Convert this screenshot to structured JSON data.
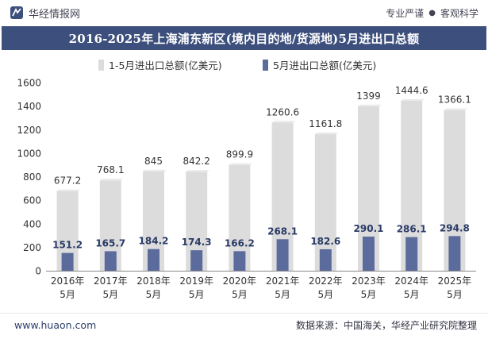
{
  "header": {
    "site_name": "华经情报网",
    "tag_pro": "专业严谨",
    "tag_obj": "客观科学",
    "title": "2016-2025年上海浦东新区(境内目的地/货源地)5月进出口总额"
  },
  "colors": {
    "title_bg": "#3d4f7c",
    "series_total": "#dcdcdc",
    "series_may": "#5b6c9c"
  },
  "chart_data": {
    "type": "bar",
    "title": "2016-2025年上海浦东新区(境内目的地/货源地)5月进出口总额",
    "categories": [
      [
        "2016年",
        "5月"
      ],
      [
        "2017年",
        "5月"
      ],
      [
        "2018年",
        "5月"
      ],
      [
        "2019年",
        "5月"
      ],
      [
        "2020年",
        "5月"
      ],
      [
        "2021年",
        "5月"
      ],
      [
        "2022年",
        "5月"
      ],
      [
        "2023年",
        "5月"
      ],
      [
        "2024年",
        "5月"
      ],
      [
        "2025年",
        "5月"
      ]
    ],
    "series": [
      {
        "name": "1-5月进出口总额(亿美元)",
        "values": [
          677.2,
          768.1,
          845,
          842.2,
          899.9,
          1260.6,
          1161.8,
          1399,
          1444.6,
          1366.1
        ]
      },
      {
        "name": "5月进出口总额(亿美元)",
        "values": [
          151.2,
          165.7,
          184.2,
          174.3,
          166.2,
          268.1,
          182.6,
          290.1,
          286.1,
          294.8
        ]
      }
    ],
    "ylim": [
      0,
      1600
    ],
    "yticks": [
      0,
      200,
      400,
      600,
      800,
      1000,
      1200,
      1400,
      1600
    ],
    "grid": false,
    "legend": "top-left"
  },
  "footer": {
    "url": "www.huaon.com",
    "source": "数据来源：中国海关，华经产业研究院整理"
  }
}
